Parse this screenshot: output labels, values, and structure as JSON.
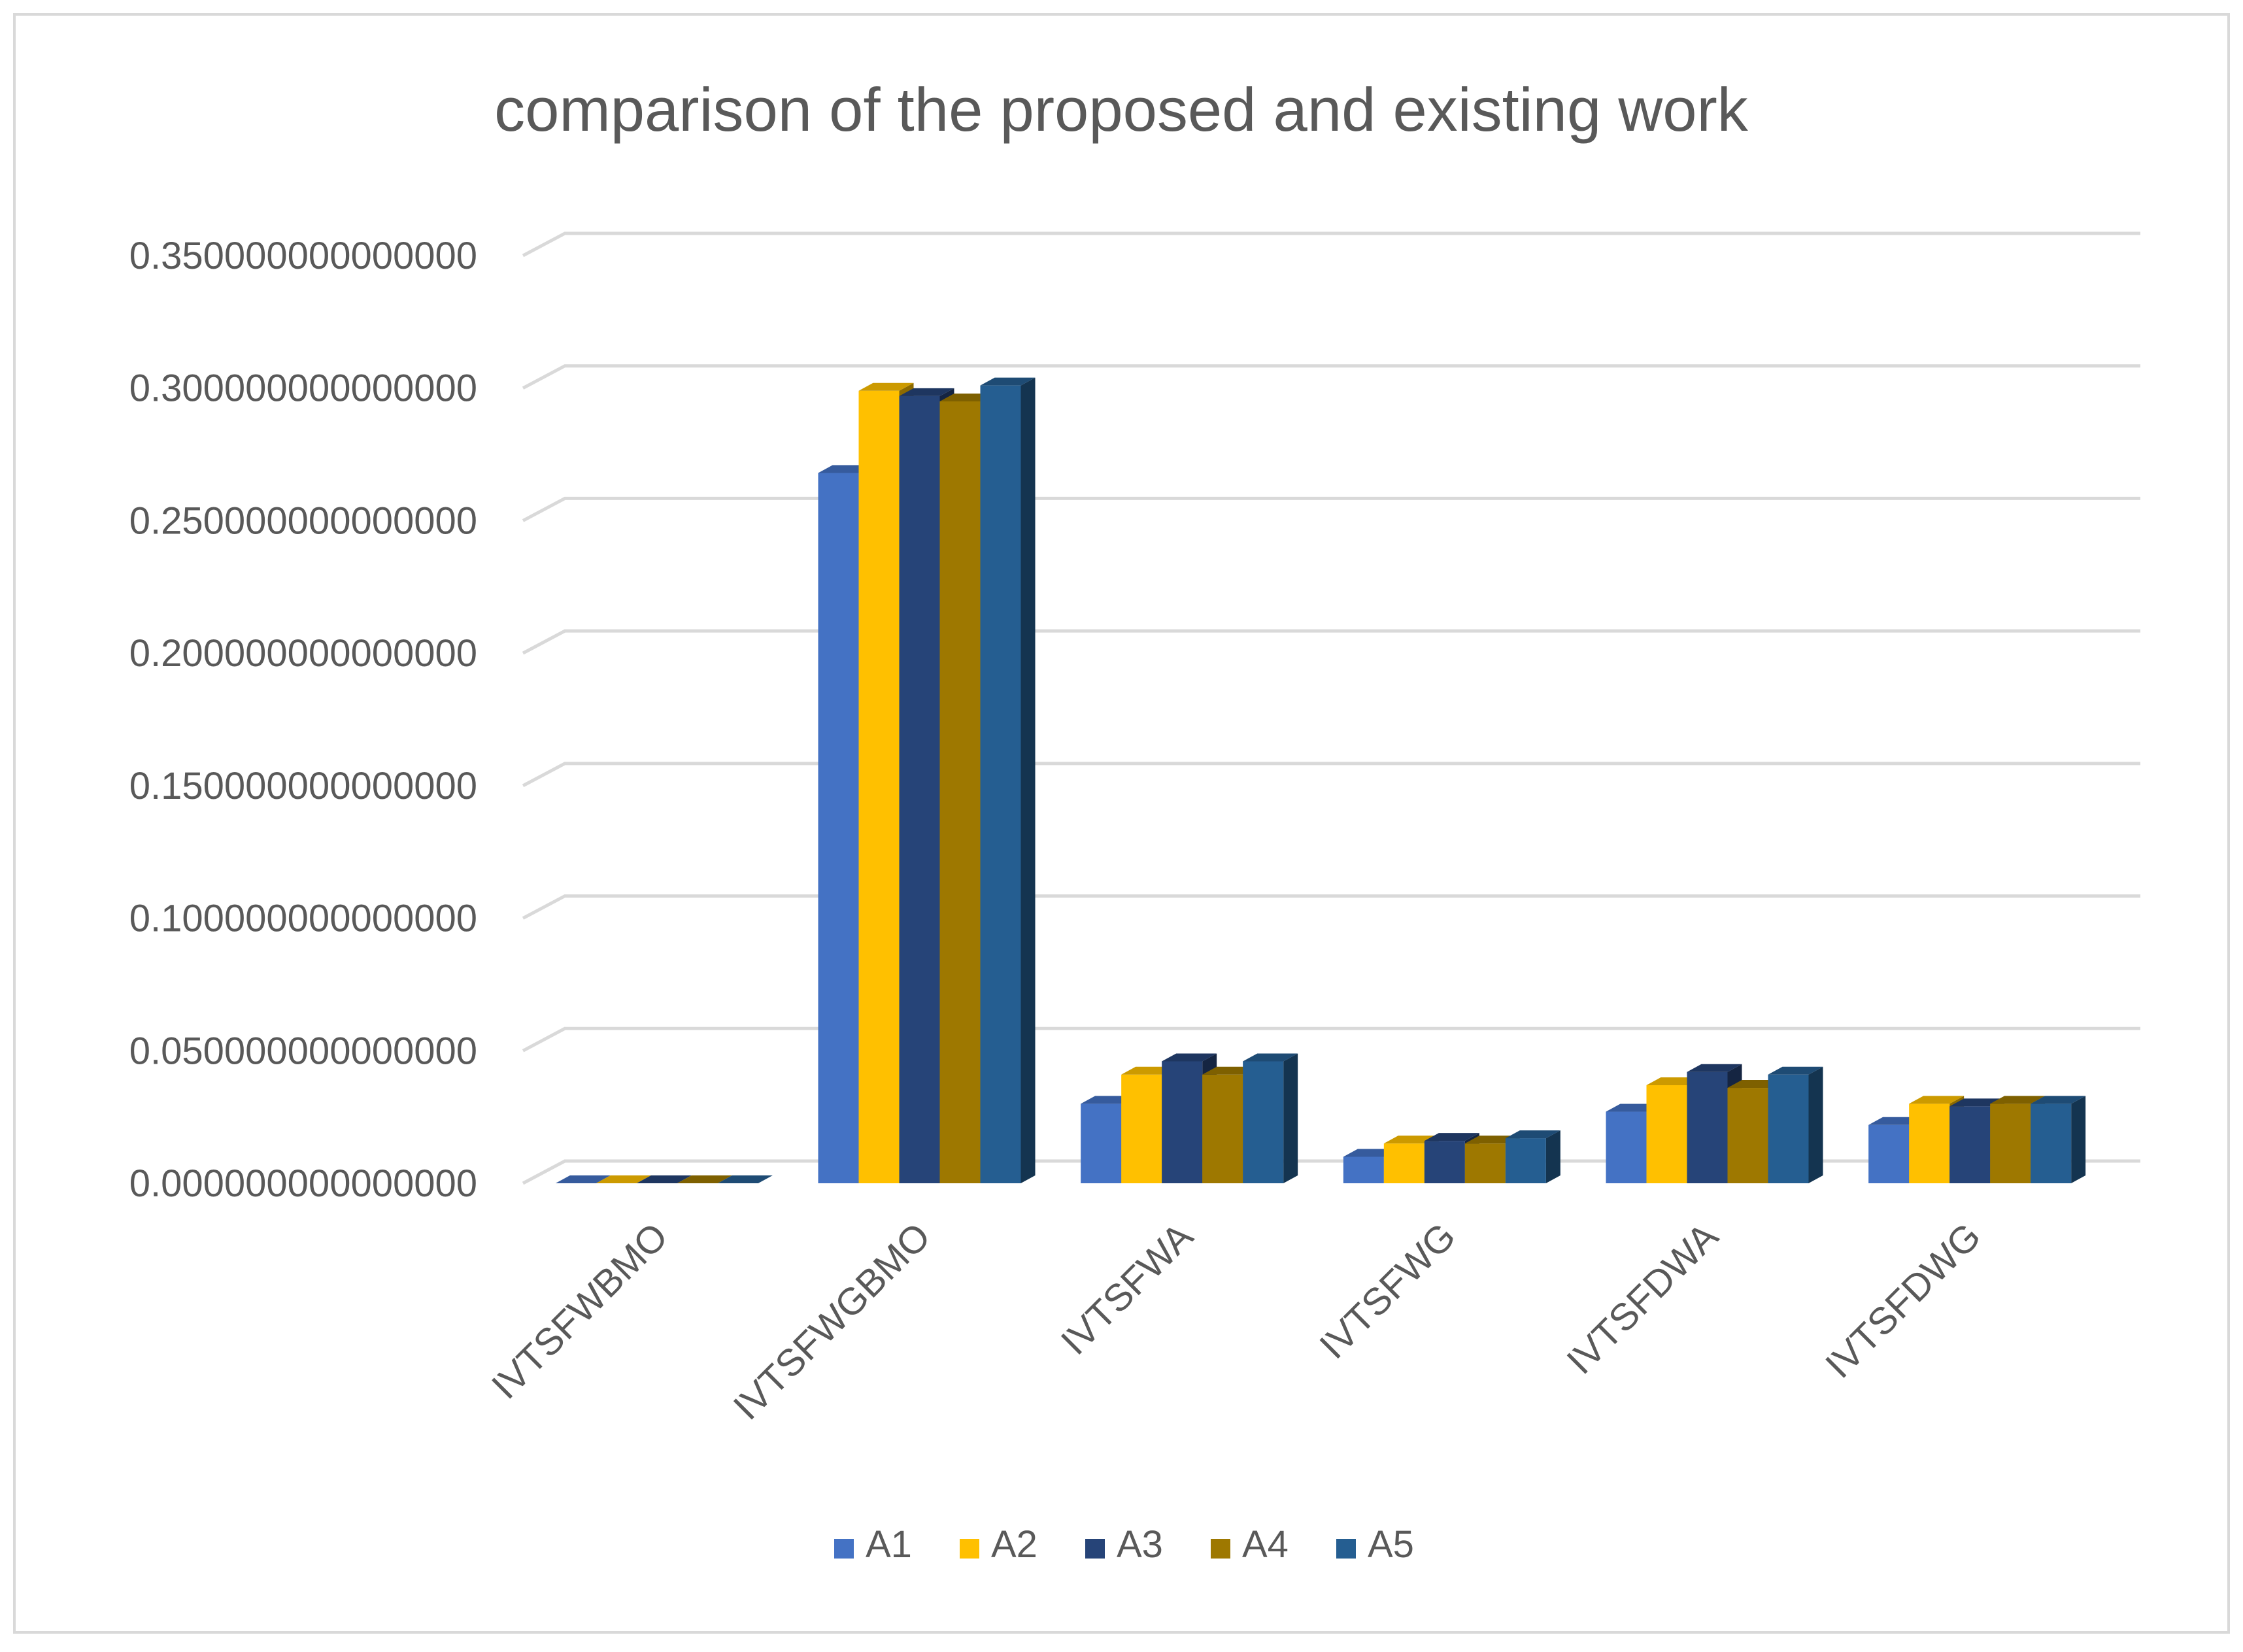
{
  "chart_data": {
    "type": "bar",
    "title": "comparison of the proposed and existing work",
    "xlabel": "",
    "ylabel": "",
    "categories": [
      "IVTSFWBMO",
      "IVTSFWGBMO",
      "IVTSFWA",
      "IVTSFWG",
      "IVTSFDWA",
      "IVTSFDWG"
    ],
    "series": [
      {
        "name": "A1",
        "color": "#4472C4",
        "values": [
          0.0,
          0.268,
          0.03,
          0.01,
          0.027,
          0.022
        ]
      },
      {
        "name": "A2",
        "color": "#FFC000",
        "values": [
          0.0,
          0.299,
          0.041,
          0.015,
          0.037,
          0.03
        ]
      },
      {
        "name": "A3",
        "color": "#264478",
        "values": [
          0.0,
          0.297,
          0.046,
          0.016,
          0.042,
          0.029
        ]
      },
      {
        "name": "A4",
        "color": "#9E7800",
        "values": [
          0.0,
          0.295,
          0.041,
          0.015,
          0.036,
          0.03
        ]
      },
      {
        "name": "A5",
        "color": "#255E91",
        "values": [
          0.0,
          0.301,
          0.046,
          0.017,
          0.041,
          0.03
        ]
      }
    ],
    "ylim": [
      0,
      0.35
    ],
    "yticks": [
      "0.000000000000000",
      "0.050000000000000",
      "0.100000000000000",
      "0.150000000000000",
      "0.200000000000000",
      "0.250000000000000",
      "0.300000000000000",
      "0.350000000000000"
    ],
    "grid": true,
    "legend": "bottom"
  }
}
